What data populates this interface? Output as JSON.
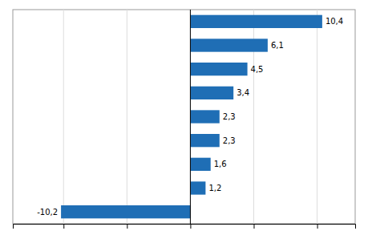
{
  "chart_data": {
    "type": "bar",
    "orientation": "horizontal",
    "categories": [
      null,
      null,
      null,
      null,
      null,
      null,
      null,
      null,
      null
    ],
    "values": [
      10.4,
      6.1,
      4.5,
      3.4,
      2.3,
      2.3,
      1.6,
      1.2,
      -10.2
    ],
    "value_labels": [
      "10,4",
      "6,1",
      "4,5",
      "3,4",
      "2,3",
      "2,3",
      "1,6",
      "1,2",
      "-10,2"
    ],
    "data_labels": true,
    "color": "#1f6eb5",
    "xlim": [
      -14,
      13
    ],
    "xticks": [
      -10,
      -5,
      0,
      5,
      10
    ],
    "grid": true,
    "tick_labels": false
  }
}
